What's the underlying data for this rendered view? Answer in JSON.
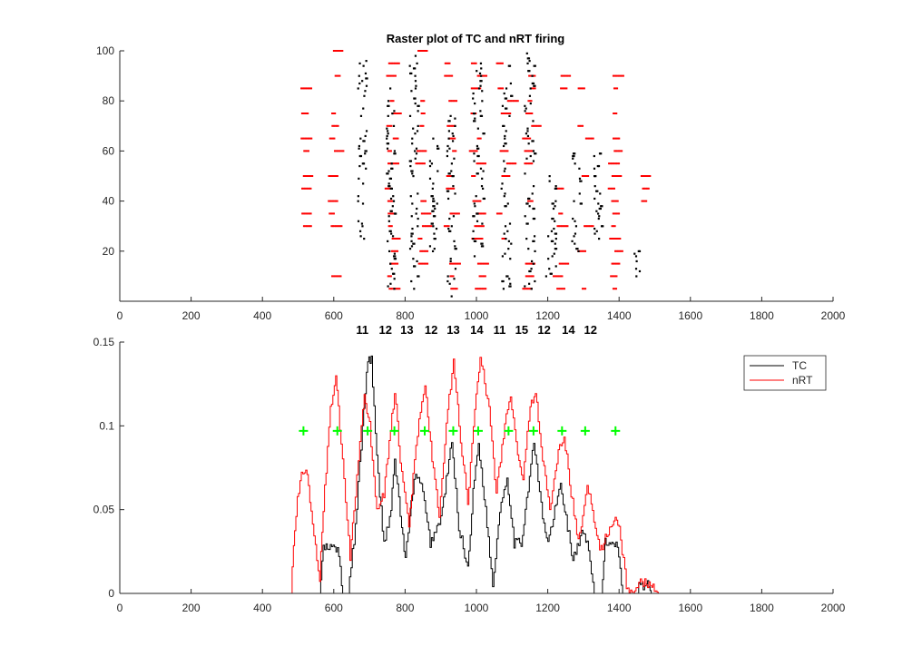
{
  "chart_data": [
    {
      "type": "scatter",
      "title": "Raster plot of TC and nRT firing",
      "xlim": [
        0,
        2000
      ],
      "ylim": [
        0,
        100
      ],
      "xticks": [
        0,
        200,
        400,
        600,
        800,
        1000,
        1200,
        1400,
        1600,
        1800,
        2000
      ],
      "yticks": [
        20,
        40,
        60,
        80,
        100
      ],
      "cycle_labels": [
        {
          "x": 680,
          "text": "11"
        },
        {
          "x": 745,
          "text": "12"
        },
        {
          "x": 805,
          "text": "13"
        },
        {
          "x": 873,
          "text": "12"
        },
        {
          "x": 935,
          "text": "13"
        },
        {
          "x": 1001,
          "text": "14"
        },
        {
          "x": 1065,
          "text": "11"
        },
        {
          "x": 1127,
          "text": "15"
        },
        {
          "x": 1190,
          "text": "12"
        },
        {
          "x": 1258,
          "text": "14"
        },
        {
          "x": 1320,
          "text": "12"
        }
      ],
      "series": [
        {
          "color": "#ff0000",
          "bursts": [
            {
              "center": 520,
              "halfwidth": 12,
              "ymin": 30,
              "ymax": 85
            },
            {
              "center": 605,
              "halfwidth": 22,
              "ymin": 10,
              "ymax": 100
            },
            {
              "center": 770,
              "halfwidth": 25,
              "ymin": 5,
              "ymax": 100
            },
            {
              "center": 855,
              "halfwidth": 25,
              "ymin": 5,
              "ymax": 100
            },
            {
              "center": 935,
              "halfwidth": 25,
              "ymin": 5,
              "ymax": 100
            },
            {
              "center": 1010,
              "halfwidth": 30,
              "ymin": 5,
              "ymax": 95
            },
            {
              "center": 1090,
              "halfwidth": 35,
              "ymin": 5,
              "ymax": 95
            },
            {
              "center": 1160,
              "halfwidth": 30,
              "ymin": 5,
              "ymax": 95
            },
            {
              "center": 1240,
              "halfwidth": 30,
              "ymin": 5,
              "ymax": 90
            },
            {
              "center": 1310,
              "halfwidth": 30,
              "ymin": 5,
              "ymax": 85
            },
            {
              "center": 1390,
              "halfwidth": 20,
              "ymin": 5,
              "ymax": 90
            },
            {
              "center": 1470,
              "halfwidth": 15,
              "ymin": 35,
              "ymax": 50
            }
          ]
        },
        {
          "color": "#000000",
          "bursts": [
            {
              "center": 680,
              "halfwidth": 12,
              "ymin": 25,
              "ymax": 98
            },
            {
              "center": 760,
              "halfwidth": 12,
              "ymin": 5,
              "ymax": 85
            },
            {
              "center": 825,
              "halfwidth": 12,
              "ymin": 5,
              "ymax": 98
            },
            {
              "center": 880,
              "halfwidth": 12,
              "ymin": 20,
              "ymax": 65
            },
            {
              "center": 930,
              "halfwidth": 12,
              "ymin": 2,
              "ymax": 75
            },
            {
              "center": 1005,
              "halfwidth": 15,
              "ymin": 15,
              "ymax": 98
            },
            {
              "center": 1085,
              "halfwidth": 15,
              "ymin": 5,
              "ymax": 95
            },
            {
              "center": 1150,
              "halfwidth": 15,
              "ymin": 5,
              "ymax": 100
            },
            {
              "center": 1210,
              "halfwidth": 15,
              "ymin": 10,
              "ymax": 50
            },
            {
              "center": 1280,
              "halfwidth": 12,
              "ymin": 20,
              "ymax": 60
            },
            {
              "center": 1340,
              "halfwidth": 12,
              "ymin": 25,
              "ymax": 60
            },
            {
              "center": 1450,
              "halfwidth": 8,
              "ymin": 10,
              "ymax": 20
            }
          ]
        }
      ]
    },
    {
      "type": "line",
      "xlim": [
        0,
        2000
      ],
      "ylim": [
        0,
        0.15
      ],
      "xticks": [
        0,
        200,
        400,
        600,
        800,
        1000,
        1200,
        1400,
        1600,
        1800,
        2000
      ],
      "yticks": [
        0,
        0.05,
        0.1,
        0.15
      ],
      "yticklabels": [
        "0",
        "0.05",
        "0.1",
        "0.15"
      ],
      "legend": {
        "placement": "top-right"
      },
      "series": [
        {
          "name": "TC",
          "color": "#000000",
          "points": [
            [
              0,
              0
            ],
            [
              560,
              0
            ],
            [
              570,
              0.027
            ],
            [
              610,
              0.027
            ],
            [
              625,
              0
            ],
            [
              640,
              0
            ],
            [
              660,
              0.04
            ],
            [
              680,
              0.1
            ],
            [
              695,
              0.14
            ],
            [
              705,
              0.14
            ],
            [
              720,
              0.08
            ],
            [
              740,
              0.03
            ],
            [
              760,
              0.05
            ],
            [
              770,
              0.08
            ],
            [
              790,
              0.04
            ],
            [
              800,
              0.02
            ],
            [
              825,
              0.07
            ],
            [
              845,
              0.065
            ],
            [
              870,
              0.03
            ],
            [
              900,
              0.045
            ],
            [
              930,
              0.09
            ],
            [
              950,
              0.04
            ],
            [
              975,
              0.015
            ],
            [
              990,
              0.06
            ],
            [
              1005,
              0.09
            ],
            [
              1025,
              0.05
            ],
            [
              1045,
              0.005
            ],
            [
              1065,
              0.05
            ],
            [
              1085,
              0.07
            ],
            [
              1105,
              0.03
            ],
            [
              1125,
              0.03
            ],
            [
              1160,
              0.09
            ],
            [
              1185,
              0.045
            ],
            [
              1200,
              0.03
            ],
            [
              1235,
              0.065
            ],
            [
              1255,
              0.04
            ],
            [
              1270,
              0.02
            ],
            [
              1295,
              0.035
            ],
            [
              1310,
              0.03
            ],
            [
              1330,
              0
            ],
            [
              1350,
              0
            ],
            [
              1360,
              0.03
            ],
            [
              1395,
              0.03
            ],
            [
              1410,
              0
            ],
            [
              1450,
              0
            ],
            [
              1455,
              0.005
            ],
            [
              1480,
              0.005
            ],
            [
              1490,
              0
            ],
            [
              2000,
              0
            ]
          ]
        },
        {
          "name": "nRT",
          "color": "#ff0000",
          "points": [
            [
              0,
              0
            ],
            [
              480,
              0
            ],
            [
              490,
              0.04
            ],
            [
              505,
              0.07
            ],
            [
              525,
              0.073
            ],
            [
              540,
              0.04
            ],
            [
              560,
              0.01
            ],
            [
              570,
              0.05
            ],
            [
              590,
              0.11
            ],
            [
              605,
              0.128
            ],
            [
              620,
              0.09
            ],
            [
              645,
              0.02
            ],
            [
              660,
              0.06
            ],
            [
              685,
              0.12
            ],
            [
              700,
              0.1
            ],
            [
              720,
              0.05
            ],
            [
              740,
              0.06
            ],
            [
              770,
              0.12
            ],
            [
              790,
              0.07
            ],
            [
              810,
              0.04
            ],
            [
              830,
              0.09
            ],
            [
              855,
              0.125
            ],
            [
              875,
              0.08
            ],
            [
              895,
              0.045
            ],
            [
              915,
              0.1
            ],
            [
              935,
              0.14
            ],
            [
              955,
              0.09
            ],
            [
              975,
              0.055
            ],
            [
              995,
              0.11
            ],
            [
              1010,
              0.142
            ],
            [
              1035,
              0.11
            ],
            [
              1055,
              0.06
            ],
            [
              1075,
              0.095
            ],
            [
              1095,
              0.12
            ],
            [
              1115,
              0.08
            ],
            [
              1130,
              0.07
            ],
            [
              1150,
              0.11
            ],
            [
              1165,
              0.122
            ],
            [
              1185,
              0.08
            ],
            [
              1205,
              0.05
            ],
            [
              1225,
              0.08
            ],
            [
              1245,
              0.095
            ],
            [
              1265,
              0.06
            ],
            [
              1285,
              0.03
            ],
            [
              1310,
              0.063
            ],
            [
              1325,
              0.05
            ],
            [
              1345,
              0.025
            ],
            [
              1365,
              0.035
            ],
            [
              1385,
              0.045
            ],
            [
              1400,
              0.04
            ],
            [
              1420,
              0.005
            ],
            [
              1440,
              0
            ],
            [
              1455,
              0.006
            ],
            [
              1480,
              0.006
            ],
            [
              1510,
              0
            ],
            [
              2000,
              0
            ]
          ]
        }
      ],
      "markers": {
        "color": "#00ff00",
        "shape": "plus",
        "y": 0.097,
        "x": [
          515,
          610,
          695,
          770,
          855,
          935,
          1005,
          1090,
          1160,
          1240,
          1305,
          1390
        ]
      }
    }
  ]
}
